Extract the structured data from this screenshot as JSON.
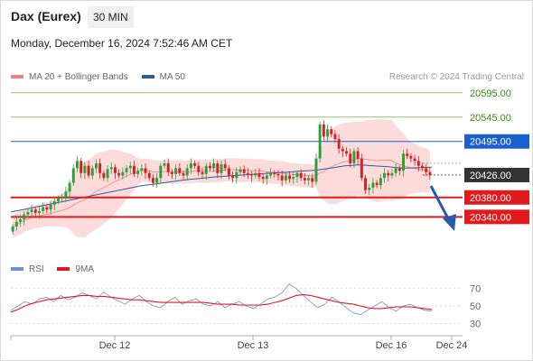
{
  "header": {
    "title": "Dax (Eurex)",
    "timeframe": "30 MIN",
    "datetime": "Monday, December 16, 2024 7:52:46 AM CET"
  },
  "legend": {
    "ma20_label": "MA 20 + Bollinger Bands",
    "ma50_label": "MA 50",
    "credit": "Research © 2024 Trading Central"
  },
  "rsi_legend": {
    "rsi_label": "RSI",
    "ma_label": "9MA"
  },
  "colors": {
    "ma20": "#f08080",
    "band_fill": "#fbd5d5",
    "ma50": "#2b5ba8",
    "up_candle": "#2e9e3a",
    "down_candle": "#d42020",
    "green_level": "#8fc46a",
    "blue_level": "#1a5fd0",
    "red_level": "#e11b1b",
    "dark_tag": "#333333",
    "rsi": "#6f8fd8",
    "rsi_ma": "#e11b1b",
    "arrow": "#2b5ba8"
  },
  "chart_data": [
    {
      "type": "candlestick",
      "title": "Dax (Eurex)",
      "timeframe": "30 MIN",
      "ylim": [
        20285,
        20615
      ],
      "x_ticks": [
        "Dec 12",
        "Dec 13",
        "Dec 16",
        "Dec 24"
      ],
      "price_levels": [
        {
          "label": "20595.00",
          "value": 20595,
          "kind": "resistance"
        },
        {
          "label": "20545.00",
          "value": 20545,
          "kind": "resistance"
        },
        {
          "label": "20495.00",
          "value": 20495,
          "kind": "pivot"
        },
        {
          "label": "20426.00",
          "value": 20426,
          "kind": "last"
        },
        {
          "label": "20380.00",
          "value": 20380,
          "kind": "support"
        },
        {
          "label": "20340.00",
          "value": 20340,
          "kind": "support"
        }
      ],
      "series": [
        {
          "name": "MA 20 + Bollinger Bands",
          "type": "band"
        },
        {
          "name": "MA 50",
          "type": "line"
        }
      ],
      "candles_close": [
        20320,
        20330,
        20335,
        20345,
        20350,
        20355,
        20348,
        20352,
        20360,
        20355,
        20365,
        20372,
        20378,
        20380,
        20392,
        20410,
        20440,
        20455,
        20430,
        20445,
        20425,
        20440,
        20450,
        20430,
        20420,
        20438,
        20442,
        20430,
        20425,
        20432,
        20440,
        20445,
        20428,
        20435,
        20440,
        20430,
        20420,
        20410,
        20420,
        20445,
        20450,
        20432,
        20428,
        20440,
        20430,
        20425,
        20440,
        20450,
        20445,
        20432,
        20428,
        20445,
        20440,
        20450,
        20430,
        20448,
        20440,
        20425,
        20420,
        20432,
        20438,
        20430,
        20428,
        20425,
        20430,
        20422,
        20418,
        20425,
        20430,
        20428,
        20425,
        20415,
        20425,
        20418,
        20422,
        20430,
        20420,
        20415,
        20420,
        20412,
        20460,
        20530,
        20505,
        20520,
        20510,
        20500,
        20480,
        20475,
        20470,
        20450,
        20475,
        20460,
        20420,
        20395,
        20400,
        20410,
        20405,
        20420,
        20430,
        20425,
        20430,
        20440,
        20435,
        20470,
        20465,
        20460,
        20455,
        20445,
        20440,
        20432,
        20426
      ],
      "candles_open": [
        20310,
        20320,
        20330,
        20335,
        20345,
        20350,
        20355,
        20348,
        20352,
        20360,
        20355,
        20365,
        20372,
        20378,
        20380,
        20392,
        20410,
        20440,
        20455,
        20430,
        20445,
        20425,
        20440,
        20450,
        20430,
        20420,
        20438,
        20442,
        20430,
        20425,
        20432,
        20440,
        20445,
        20428,
        20435,
        20440,
        20430,
        20420,
        20410,
        20420,
        20445,
        20450,
        20432,
        20428,
        20440,
        20430,
        20425,
        20440,
        20450,
        20445,
        20432,
        20428,
        20445,
        20440,
        20450,
        20430,
        20448,
        20440,
        20425,
        20420,
        20432,
        20438,
        20430,
        20428,
        20425,
        20430,
        20422,
        20418,
        20425,
        20430,
        20428,
        20425,
        20415,
        20425,
        20418,
        20422,
        20430,
        20420,
        20415,
        20420,
        20412,
        20460,
        20530,
        20505,
        20520,
        20510,
        20500,
        20480,
        20475,
        20470,
        20450,
        20475,
        20460,
        20420,
        20395,
        20400,
        20410,
        20405,
        20420,
        20430,
        20425,
        20430,
        20440,
        20435,
        20470,
        20465,
        20460,
        20455,
        20445,
        20440,
        20432
      ],
      "ma50_path": [
        20350,
        20356,
        20362,
        20368,
        20374,
        20380,
        20386,
        20392,
        20398,
        20404,
        20408,
        20412,
        20416,
        20419,
        20422,
        20424,
        20426,
        20428,
        20430,
        20432,
        20434,
        20436,
        20440,
        20445,
        20447,
        20445,
        20443,
        20440,
        20441,
        20442
      ]
    },
    {
      "type": "line",
      "title": "RSI",
      "ylim": [
        20,
        80
      ],
      "y_ticks": [
        70,
        50,
        30
      ],
      "series": [
        {
          "name": "RSI",
          "values": [
            45,
            50,
            55,
            52,
            58,
            60,
            55,
            62,
            57,
            60,
            65,
            62,
            58,
            66,
            60,
            56,
            52,
            58,
            62,
            55,
            50,
            48,
            55,
            60,
            52,
            56,
            58,
            52,
            50,
            55,
            48,
            52,
            55,
            50,
            47,
            52,
            58,
            60,
            65,
            75,
            70,
            62,
            55,
            48,
            52,
            60,
            55,
            48,
            42,
            40,
            45,
            50,
            55,
            48,
            44,
            50,
            52,
            48,
            45,
            44
          ]
        },
        {
          "name": "9MA",
          "values": [
            43,
            46,
            50,
            53,
            55,
            57,
            58,
            59,
            60,
            61,
            62,
            62,
            61,
            61,
            60,
            59,
            58,
            57,
            57,
            56,
            55,
            54,
            54,
            54,
            54,
            54,
            54,
            54,
            53,
            52,
            52,
            52,
            51,
            51,
            51,
            51,
            52,
            54,
            56,
            59,
            62,
            63,
            62,
            60,
            58,
            56,
            54,
            53,
            52,
            50,
            48,
            47,
            47,
            48,
            49,
            49,
            49,
            48,
            47,
            46
          ]
        }
      ]
    }
  ]
}
